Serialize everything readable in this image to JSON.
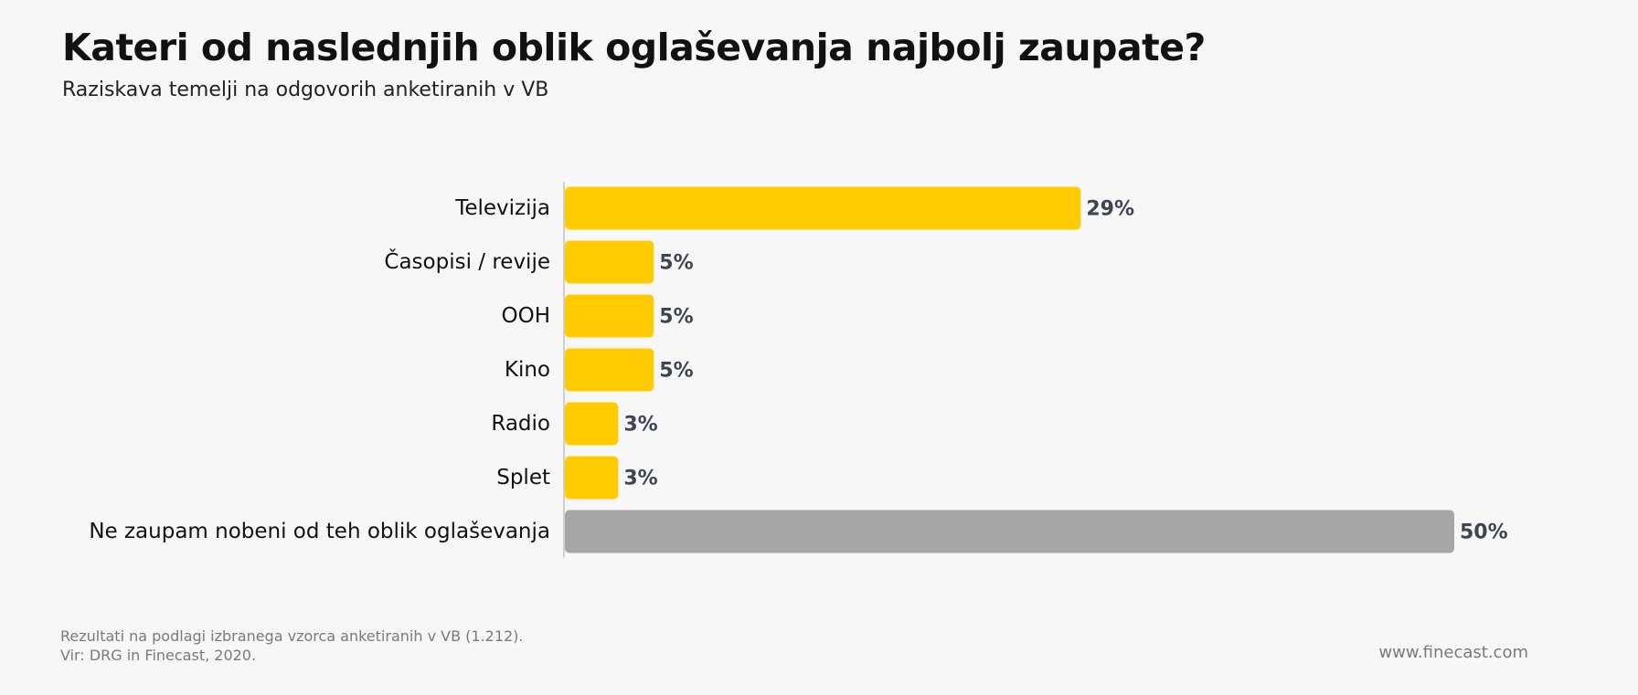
{
  "chart_data": {
    "type": "bar",
    "orientation": "horizontal",
    "title": "Kateri od naslednjih oblik oglaševanja najbolj zaupate?",
    "subtitle": "Raziskava temelji na odgovorih anketiranih v VB",
    "categories": [
      "Televizija",
      "Časopisi / revije",
      "OOH",
      "Kino",
      "Radio",
      "Splet",
      "Ne zaupam nobeni od teh oblik oglaševanja"
    ],
    "values": [
      29,
      5,
      5,
      5,
      3,
      3,
      50
    ],
    "data_labels": [
      "29%",
      "5%",
      "5%",
      "5%",
      "3%",
      "3%",
      "50%"
    ],
    "unit": "%",
    "xlim": [
      0,
      50
    ],
    "grid": false,
    "colors": {
      "default_bar": "#FFCC03",
      "highlight_bar": "#A6A6A6",
      "label": "#3f4550",
      "axis": "#cfcfcf"
    },
    "highlight_index": 6
  },
  "footer": {
    "note_line1": "Rezultati na podlagi izbranega vzorca anketiranih v VB (1.212).",
    "note_line2": "Vir: DRG in Finecast, 2020.",
    "website": "www.finecast.com"
  }
}
